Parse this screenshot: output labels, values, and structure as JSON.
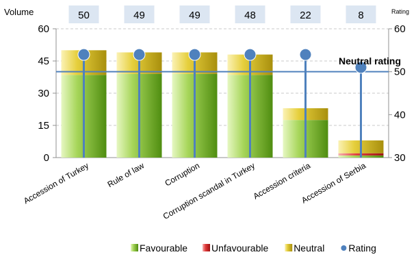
{
  "chart_data": {
    "type": "bar",
    "stacked": true,
    "categories": [
      "Accession of Turkey",
      "Rule of law",
      "Corruption",
      "Corruption scandal in Turkey",
      "Accession criteria",
      "Accession of Serbia"
    ],
    "volume_header_label": "Volume",
    "rating_header_label": "Rating",
    "volumes": [
      50,
      49,
      49,
      48,
      22,
      8
    ],
    "series": [
      {
        "name": "Favourable",
        "values": [
          38.5,
          39,
          39,
          38.5,
          17.5,
          1
        ],
        "color": "#6aaa1a"
      },
      {
        "name": "Unfavourable",
        "values": [
          0,
          0,
          0,
          0,
          0,
          1
        ],
        "color": "#d92020"
      },
      {
        "name": "Neutral",
        "values": [
          11.5,
          10,
          10,
          9.5,
          5.5,
          6
        ],
        "color": "#dcc21a"
      }
    ],
    "rating": {
      "name": "Rating",
      "values": [
        54,
        54,
        54,
        54,
        54,
        51
      ],
      "color": "#4f81bd"
    },
    "neutral_line": 50,
    "neutral_annotation": "Neutral rating",
    "y_left": {
      "lim": [
        0,
        60
      ],
      "ticks": [
        0,
        15,
        30,
        45,
        60
      ]
    },
    "y_right": {
      "lim": [
        30,
        60
      ],
      "ticks": [
        30,
        40,
        50,
        60
      ]
    },
    "grid": "horizontal dashed",
    "legend_position": "bottom"
  }
}
